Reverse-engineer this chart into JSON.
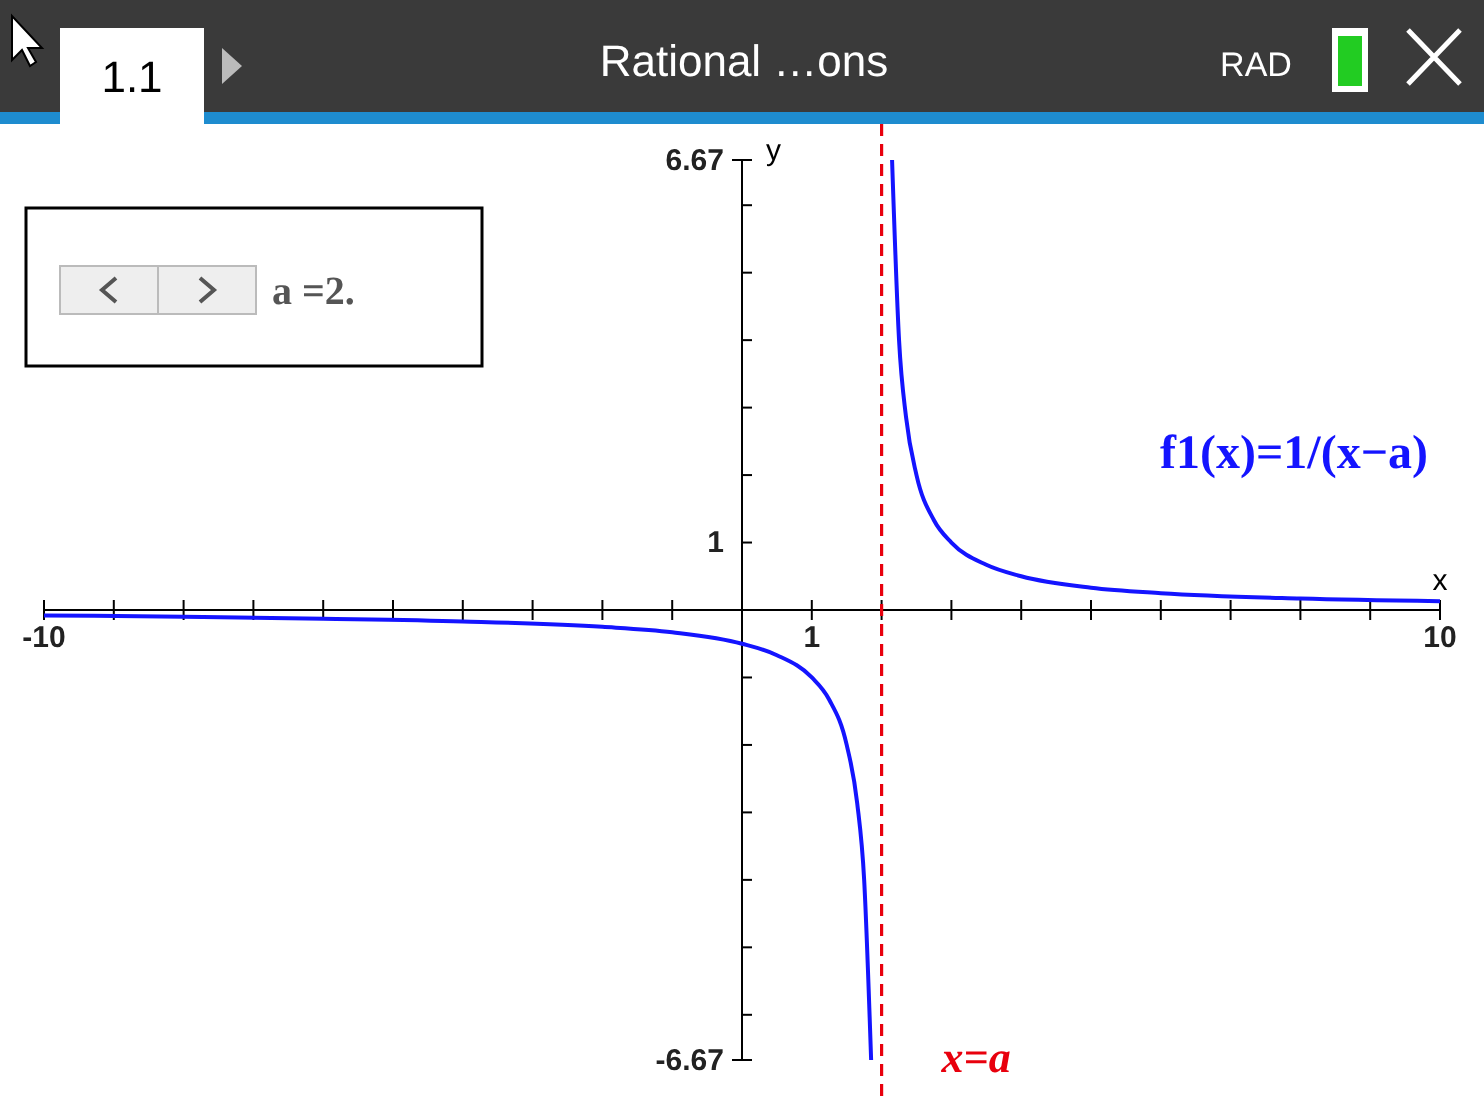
{
  "chart_data": {
    "type": "line",
    "xlabel": "x",
    "ylabel": "y",
    "series": [
      {
        "name": "f1(x)=1/(x−a)",
        "color": "#1414ff",
        "x": [
          2.15,
          2.25,
          2.35,
          2.5,
          2.75,
          3,
          3.5,
          4,
          5,
          6,
          8,
          10
        ],
        "values": [
          6.67,
          4,
          2.86,
          2,
          1.33,
          1,
          0.67,
          0.5,
          0.33,
          0.25,
          0.17,
          0.13
        ]
      },
      {
        "color": "#1414ff",
        "x": [
          -10,
          -8,
          -6,
          -4,
          -2,
          -1,
          0,
          0.5,
          1,
          1.25,
          1.5,
          1.65,
          1.75,
          1.85
        ],
        "values": [
          -0.08,
          -0.1,
          -0.13,
          -0.17,
          -0.25,
          -0.33,
          -0.5,
          -0.67,
          -1,
          -1.33,
          -2,
          -2.86,
          -4,
          -6.67
        ]
      }
    ],
    "xlim": [
      -10,
      10
    ],
    "xticks": [
      -10,
      {
        "value": -9,
        "label": null
      },
      {
        "value": -8,
        "label": null
      },
      {
        "value": -7,
        "label": null
      },
      {
        "value": -6,
        "label": null
      },
      {
        "value": -5,
        "label": null
      },
      {
        "value": -4,
        "label": null
      },
      {
        "value": -3,
        "label": null
      },
      {
        "value": -2,
        "label": null
      },
      {
        "value": -1,
        "label": null
      },
      1,
      {
        "value": 2,
        "label": null
      },
      {
        "value": 3,
        "label": null
      },
      {
        "value": 4,
        "label": null
      },
      {
        "value": 5,
        "label": null
      },
      {
        "value": 6,
        "label": null
      },
      {
        "value": 7,
        "label": null
      },
      {
        "value": 8,
        "label": null
      },
      {
        "value": 9,
        "label": null
      },
      10
    ],
    "ylim": [
      -6.67,
      6.67
    ],
    "yticks": [
      -6.67,
      {
        "value": -6,
        "label": null
      },
      {
        "value": -5,
        "label": null
      },
      {
        "value": -4,
        "label": null
      },
      {
        "value": -3,
        "label": null
      },
      {
        "value": -2,
        "label": null
      },
      {
        "value": -1,
        "label": null
      },
      1,
      {
        "value": 2,
        "label": null
      },
      {
        "value": 3,
        "label": null
      },
      {
        "value": 4,
        "label": null
      },
      {
        "value": 5,
        "label": null
      },
      {
        "value": 6,
        "label": null
      },
      6.67
    ],
    "ref_lines": [
      {
        "axis": "x",
        "value": 2,
        "label": "x=a",
        "color": "#e8000d",
        "line_style": "dashed"
      }
    ],
    "annotations": [
      "1.1",
      "Rational …ons",
      "RAD",
      "a =2."
    ],
    "grid": false,
    "marker": "none",
    "line_style": "solid"
  }
}
